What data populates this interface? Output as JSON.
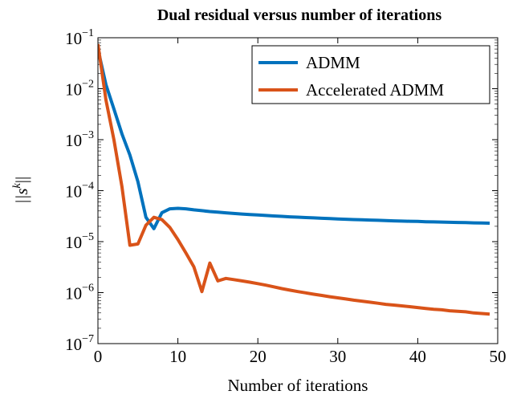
{
  "chart_data": {
    "type": "line",
    "title": "Dual residual versus number of iterations",
    "xlabel": "Number of iterations",
    "ylabel": "||s^k||",
    "ylabel_base": "||s",
    "ylabel_sup": "k",
    "ylabel_end": "||",
    "xlim": [
      0,
      50
    ],
    "ylim": [
      1e-07,
      0.1
    ],
    "yscale": "log",
    "grid": false,
    "legend_position": "top-right",
    "x_ticks": [
      {
        "value": 0,
        "label": "0"
      },
      {
        "value": 10,
        "label": "10"
      },
      {
        "value": 20,
        "label": "20"
      },
      {
        "value": 30,
        "label": "30"
      },
      {
        "value": 40,
        "label": "40"
      },
      {
        "value": 50,
        "label": "50"
      }
    ],
    "y_ticks": [
      {
        "value": 1e-07,
        "base": "10",
        "exp": "−7"
      },
      {
        "value": 1e-06,
        "base": "10",
        "exp": "−6"
      },
      {
        "value": 1e-05,
        "base": "10",
        "exp": "−5"
      },
      {
        "value": 0.0001,
        "base": "10",
        "exp": "−4"
      },
      {
        "value": 0.001,
        "base": "10",
        "exp": "−3"
      },
      {
        "value": 0.01,
        "base": "10",
        "exp": "−2"
      },
      {
        "value": 0.1,
        "base": "10",
        "exp": "−1"
      }
    ],
    "series": [
      {
        "name": "ADMM",
        "color": "#0072BD",
        "x": [
          0,
          1,
          2,
          3,
          4,
          5,
          6,
          7,
          8,
          9,
          10,
          11,
          12,
          13,
          14,
          15,
          16,
          17,
          18,
          19,
          20,
          21,
          22,
          23,
          24,
          25,
          26,
          27,
          28,
          29,
          30,
          31,
          32,
          33,
          34,
          35,
          36,
          37,
          38,
          39,
          40,
          41,
          42,
          43,
          44,
          45,
          46,
          47,
          48,
          49
        ],
        "y": [
          0.06,
          0.012,
          0.004,
          0.0013,
          0.0005,
          0.00015,
          3e-05,
          1.8e-05,
          3.7e-05,
          4.4e-05,
          4.5e-05,
          4.4e-05,
          4.2e-05,
          4.05e-05,
          3.9e-05,
          3.78e-05,
          3.67e-05,
          3.57e-05,
          3.48e-05,
          3.4e-05,
          3.33e-05,
          3.26e-05,
          3.19e-05,
          3.13e-05,
          3.07e-05,
          3.02e-05,
          2.97e-05,
          2.92e-05,
          2.87e-05,
          2.83e-05,
          2.79e-05,
          2.75e-05,
          2.71e-05,
          2.68e-05,
          2.65e-05,
          2.62e-05,
          2.59e-05,
          2.56e-05,
          2.53e-05,
          2.51e-05,
          2.49e-05,
          2.46e-05,
          2.44e-05,
          2.42e-05,
          2.4e-05,
          2.38e-05,
          2.36e-05,
          2.34e-05,
          2.32e-05,
          2.3e-05
        ]
      },
      {
        "name": "Accelerated ADMM",
        "color": "#D95319",
        "x": [
          0,
          1,
          2,
          3,
          4,
          5,
          6,
          7,
          8,
          9,
          10,
          11,
          12,
          13,
          14,
          15,
          16,
          17,
          18,
          19,
          20,
          21,
          22,
          23,
          24,
          25,
          26,
          27,
          28,
          29,
          30,
          31,
          32,
          33,
          34,
          35,
          36,
          37,
          38,
          39,
          40,
          41,
          42,
          43,
          44,
          45,
          46,
          47,
          48,
          49
        ],
        "y": [
          0.075,
          0.006,
          0.001,
          0.00012,
          8.5e-06,
          9e-06,
          2.1e-05,
          3e-05,
          2.7e-05,
          1.9e-05,
          1.1e-05,
          6e-06,
          3.2e-06,
          1.05e-06,
          3.8e-06,
          1.7e-06,
          1.9e-06,
          1.8e-06,
          1.7e-06,
          1.6e-06,
          1.5e-06,
          1.4e-06,
          1.3e-06,
          1.2e-06,
          1.12e-06,
          1.05e-06,
          9.9e-07,
          9.3e-07,
          8.8e-07,
          8.3e-07,
          7.9e-07,
          7.5e-07,
          7.1e-07,
          6.8e-07,
          6.5e-07,
          6.2e-07,
          5.9e-07,
          5.7e-07,
          5.5e-07,
          5.3e-07,
          5.1e-07,
          4.9e-07,
          4.7e-07,
          4.6e-07,
          4.4e-07,
          4.3e-07,
          4.2e-07,
          4e-07,
          3.9e-07,
          3.8e-07
        ]
      }
    ]
  }
}
